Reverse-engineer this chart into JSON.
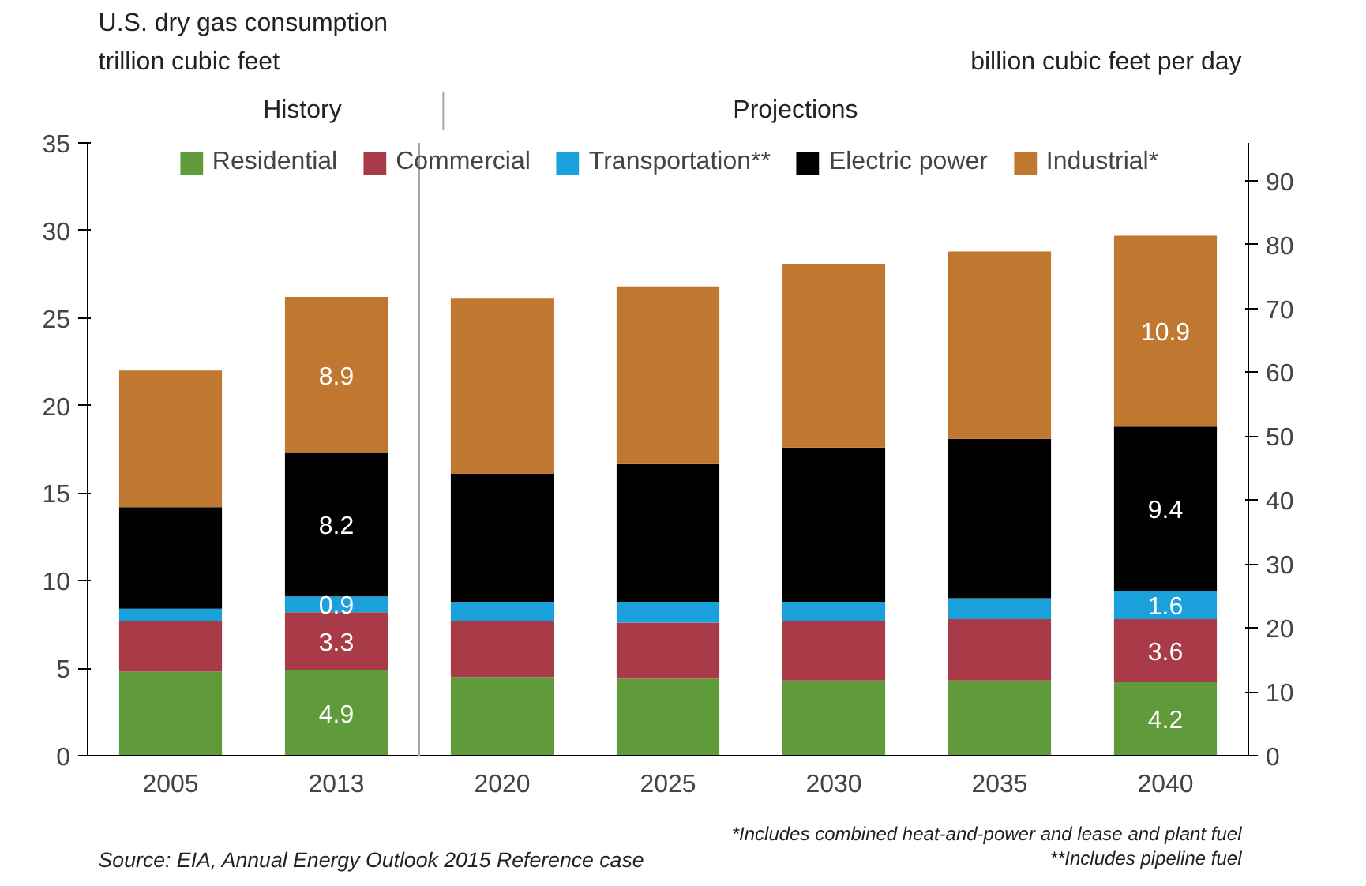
{
  "chart_data": {
    "type": "bar",
    "stacked": true,
    "title": "U.S. dry gas consumption",
    "ylabel": "trillion cubic feet",
    "y2label": "billion cubic feet per day",
    "categories": [
      "2005",
      "2013",
      "2020",
      "2025",
      "2030",
      "2035",
      "2040"
    ],
    "series": [
      {
        "name": "Residential",
        "color": "#5f9a3b",
        "values": [
          4.8,
          4.9,
          4.5,
          4.4,
          4.3,
          4.3,
          4.2
        ],
        "value_labels": [
          null,
          "4.9",
          null,
          null,
          null,
          null,
          "4.2"
        ]
      },
      {
        "name": "Commercial",
        "color": "#a93a47",
        "values": [
          2.9,
          3.3,
          3.2,
          3.2,
          3.4,
          3.5,
          3.6
        ],
        "value_labels": [
          null,
          "3.3",
          null,
          null,
          null,
          null,
          "3.6"
        ]
      },
      {
        "name": "Transportation**",
        "color": "#1aa0da",
        "values": [
          0.7,
          0.9,
          1.1,
          1.2,
          1.1,
          1.2,
          1.6
        ],
        "value_labels": [
          null,
          "0.9",
          null,
          null,
          null,
          null,
          "1.6"
        ]
      },
      {
        "name": "Electric power",
        "color": "#000000",
        "values": [
          5.8,
          8.2,
          7.3,
          7.9,
          8.8,
          9.1,
          9.4
        ],
        "value_labels": [
          null,
          "8.2",
          null,
          null,
          null,
          null,
          "9.4"
        ]
      },
      {
        "name": "Industrial*",
        "color": "#c0772f",
        "values": [
          7.8,
          8.9,
          10.0,
          10.1,
          10.5,
          10.7,
          10.9
        ],
        "value_labels": [
          null,
          "8.9",
          null,
          null,
          null,
          null,
          "10.9"
        ]
      }
    ],
    "ylim": [
      0,
      35
    ],
    "yticks": [
      0,
      5,
      10,
      15,
      20,
      25,
      30,
      35
    ],
    "y2lim": [
      0,
      95.89
    ],
    "y2ticks": [
      0,
      10,
      20,
      30,
      40,
      50,
      60,
      70,
      80,
      90
    ],
    "legend": "top",
    "grid": false,
    "annotations": [
      "History",
      "Projections",
      "Source:  EIA, Annual Energy Outlook 2015 Reference case",
      "*Includes combined heat-and-power and lease and plant fuel",
      "**Includes pipeline fuel"
    ]
  }
}
